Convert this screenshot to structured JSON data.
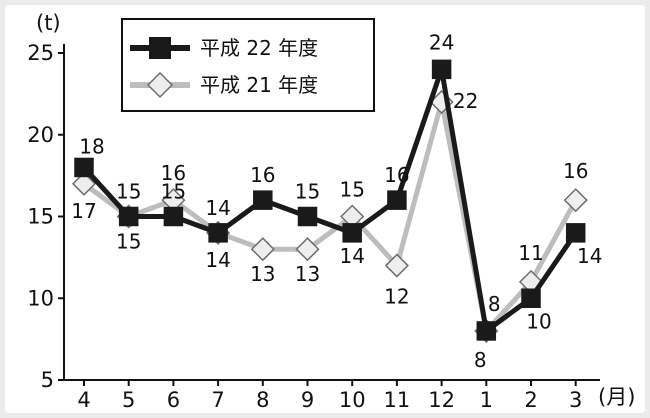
{
  "chart_data": {
    "type": "line",
    "categories": [
      "4",
      "5",
      "6",
      "7",
      "8",
      "9",
      "10",
      "11",
      "12",
      "1",
      "2",
      "3"
    ],
    "series": [
      {
        "name": "平成 22 年度",
        "values": [
          18,
          15,
          15,
          14,
          16,
          15,
          14,
          16,
          24,
          8,
          10,
          14
        ],
        "color": "#1a1a1a",
        "marker": "square"
      },
      {
        "name": "平成 21 年度",
        "values": [
          17,
          15,
          16,
          14,
          13,
          13,
          15,
          12,
          22,
          8,
          11,
          16
        ],
        "color": "#bdbdbd",
        "marker": "diamond"
      }
    ],
    "data_labels": {
      "s0": [
        "18",
        "15",
        "15",
        "14",
        "16",
        "15",
        "14",
        "16",
        "24",
        "8",
        "10",
        "14"
      ],
      "s1": [
        "17",
        "15",
        "16",
        "14",
        "13",
        "13",
        "15",
        "12",
        "22",
        "8",
        "11",
        "16"
      ]
    },
    "ylabel": "(t)",
    "xlabel": "(月)",
    "ylim": [
      5,
      25
    ],
    "yticks": [
      "5",
      "10",
      "15",
      "20",
      "25"
    ],
    "grid": false,
    "legend_position": "top-center"
  }
}
